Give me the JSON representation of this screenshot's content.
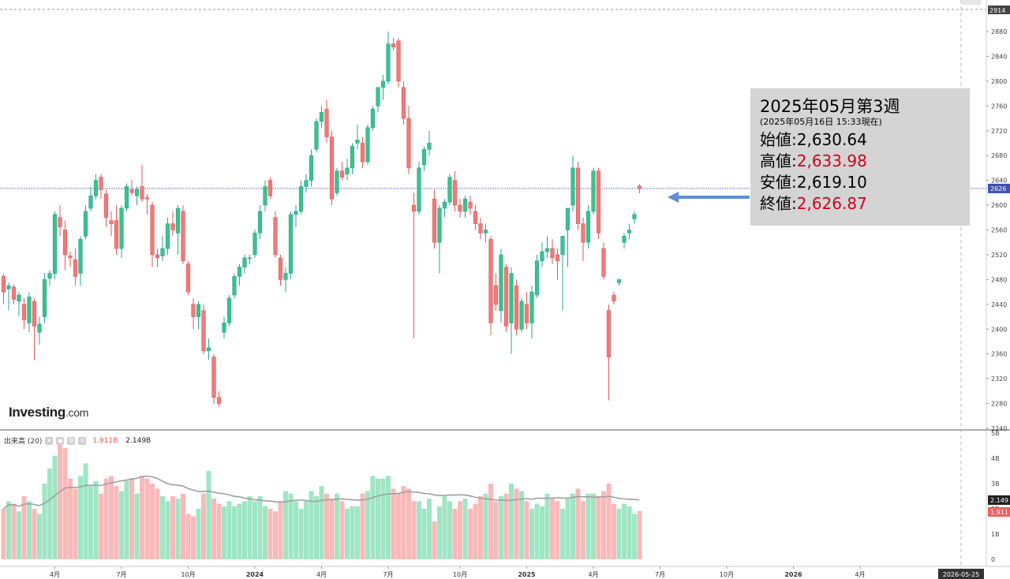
{
  "branding": {
    "logo_main": "Investing",
    "logo_suffix": ".com"
  },
  "volume_legend": {
    "label": "出来高 (20)",
    "value_current": "1.911B",
    "value_ma": "2.149B"
  },
  "info_box": {
    "title": "2025年05月第3週",
    "subtitle": "(2025年05月16日 15:33現在)",
    "open_label": "始値",
    "open_value": "2,630.64",
    "high_label": "高値",
    "high_value": "2,633.98",
    "low_label": "安値",
    "low_value": "2,619.10",
    "close_label": "終値",
    "close_value": "2,626.87"
  },
  "colors": {
    "up": "#26a69a",
    "up_fill": "#3cc18a",
    "down": "#e05a5a",
    "down_fill": "#f07a7a",
    "vol_up": "#9ee6c4",
    "vol_down": "#f9b9b9",
    "price_line": "#5d6fd9",
    "arrow": "#5b8fd6",
    "ma_line": "#a0a0a0"
  },
  "chart_data": {
    "type": "candlestick",
    "price_axis": {
      "ticks": [
        "2240",
        "2280",
        "2320",
        "2360",
        "2400",
        "2440",
        "2480",
        "2520",
        "2560",
        "2600",
        "2640",
        "2680",
        "2720",
        "2760",
        "2800",
        "2840",
        "2880"
      ],
      "top_label": "2914",
      "current_label": "2626",
      "ylim": [
        2240,
        2914
      ]
    },
    "volume_axis": {
      "ticks": [
        "0",
        "1B",
        "2B",
        "3B",
        "4B",
        "5B"
      ],
      "ma_label": "2.149",
      "current_label": "1.911",
      "ylim": [
        0,
        5
      ]
    },
    "time_axis": {
      "labels": [
        {
          "text": "4月",
          "week": 10
        },
        {
          "text": "7月",
          "week": 23
        },
        {
          "text": "10月",
          "week": 36
        },
        {
          "text": "2024",
          "week": 49
        },
        {
          "text": "4月",
          "week": 62
        },
        {
          "text": "7月",
          "week": 75
        },
        {
          "text": "10月",
          "week": 89
        },
        {
          "text": "2025",
          "week": 102
        },
        {
          "text": "4月",
          "week": 115
        },
        {
          "text": "7月",
          "week": 128
        },
        {
          "text": "10月",
          "week": 141
        },
        {
          "text": "2026",
          "week": 154
        },
        {
          "text": "4月",
          "week": 167
        }
      ],
      "end_label": "2026-05-25"
    },
    "current_price": 2626.87,
    "note": "weekly OHLC in index points, volume in billions (B)",
    "series": [
      {
        "o": 2485,
        "h": 2490,
        "l": 2440,
        "c": 2460,
        "v": 2.0
      },
      {
        "o": 2465,
        "h": 2475,
        "l": 2430,
        "c": 2470,
        "v": 2.3
      },
      {
        "o": 2468,
        "h": 2472,
        "l": 2440,
        "c": 2448,
        "v": 2.2
      },
      {
        "o": 2445,
        "h": 2460,
        "l": 2420,
        "c": 2455,
        "v": 1.9
      },
      {
        "o": 2440,
        "h": 2450,
        "l": 2400,
        "c": 2415,
        "v": 2.5
      },
      {
        "o": 2410,
        "h": 2460,
        "l": 2395,
        "c": 2452,
        "v": 2.3
      },
      {
        "o": 2445,
        "h": 2450,
        "l": 2350,
        "c": 2405,
        "v": 2.0
      },
      {
        "o": 2395,
        "h": 2420,
        "l": 2375,
        "c": 2408,
        "v": 1.8
      },
      {
        "o": 2420,
        "h": 2490,
        "l": 2410,
        "c": 2480,
        "v": 3.0
      },
      {
        "o": 2482,
        "h": 2495,
        "l": 2470,
        "c": 2490,
        "v": 3.6
      },
      {
        "o": 2490,
        "h": 2590,
        "l": 2480,
        "c": 2585,
        "v": 4.1
      },
      {
        "o": 2580,
        "h": 2600,
        "l": 2550,
        "c": 2565,
        "v": 4.6
      },
      {
        "o": 2560,
        "h": 2575,
        "l": 2495,
        "c": 2520,
        "v": 4.4
      },
      {
        "o": 2518,
        "h": 2525,
        "l": 2500,
        "c": 2515,
        "v": 3.2
      },
      {
        "o": 2512,
        "h": 2530,
        "l": 2470,
        "c": 2485,
        "v": 2.8
      },
      {
        "o": 2490,
        "h": 2550,
        "l": 2470,
        "c": 2545,
        "v": 3.3
      },
      {
        "o": 2550,
        "h": 2600,
        "l": 2545,
        "c": 2590,
        "v": 3.8
      },
      {
        "o": 2595,
        "h": 2630,
        "l": 2590,
        "c": 2615,
        "v": 2.9
      },
      {
        "o": 2615,
        "h": 2650,
        "l": 2610,
        "c": 2640,
        "v": 3.1
      },
      {
        "o": 2645,
        "h": 2650,
        "l": 2610,
        "c": 2625,
        "v": 2.6
      },
      {
        "o": 2618,
        "h": 2625,
        "l": 2565,
        "c": 2580,
        "v": 3.2
      },
      {
        "o": 2575,
        "h": 2590,
        "l": 2550,
        "c": 2570,
        "v": 3.3
      },
      {
        "o": 2575,
        "h": 2600,
        "l": 2520,
        "c": 2530,
        "v": 2.9
      },
      {
        "o": 2530,
        "h": 2600,
        "l": 2515,
        "c": 2595,
        "v": 2.7
      },
      {
        "o": 2595,
        "h": 2635,
        "l": 2590,
        "c": 2630,
        "v": 3.1
      },
      {
        "o": 2625,
        "h": 2640,
        "l": 2615,
        "c": 2620,
        "v": 3.2
      },
      {
        "o": 2615,
        "h": 2630,
        "l": 2600,
        "c": 2625,
        "v": 2.6
      },
      {
        "o": 2630,
        "h": 2665,
        "l": 2605,
        "c": 2610,
        "v": 3.3
      },
      {
        "o": 2612,
        "h": 2618,
        "l": 2585,
        "c": 2610,
        "v": 3.2
      },
      {
        "o": 2600,
        "h": 2605,
        "l": 2500,
        "c": 2520,
        "v": 3.0
      },
      {
        "o": 2520,
        "h": 2530,
        "l": 2500,
        "c": 2515,
        "v": 2.8
      },
      {
        "o": 2518,
        "h": 2550,
        "l": 2510,
        "c": 2530,
        "v": 2.5
      },
      {
        "o": 2530,
        "h": 2580,
        "l": 2520,
        "c": 2570,
        "v": 2.3
      },
      {
        "o": 2570,
        "h": 2590,
        "l": 2550,
        "c": 2560,
        "v": 2.5
      },
      {
        "o": 2555,
        "h": 2600,
        "l": 2520,
        "c": 2595,
        "v": 2.4
      },
      {
        "o": 2590,
        "h": 2600,
        "l": 2505,
        "c": 2510,
        "v": 2.6
      },
      {
        "o": 2505,
        "h": 2510,
        "l": 2455,
        "c": 2460,
        "v": 1.8
      },
      {
        "o": 2440,
        "h": 2450,
        "l": 2400,
        "c": 2420,
        "v": 1.7
      },
      {
        "o": 2420,
        "h": 2445,
        "l": 2400,
        "c": 2440,
        "v": 2.0
      },
      {
        "o": 2430,
        "h": 2440,
        "l": 2360,
        "c": 2365,
        "v": 2.6
      },
      {
        "o": 2365,
        "h": 2385,
        "l": 2350,
        "c": 2370,
        "v": 3.5
      },
      {
        "o": 2355,
        "h": 2360,
        "l": 2280,
        "c": 2290,
        "v": 2.4
      },
      {
        "o": 2290,
        "h": 2300,
        "l": 2275,
        "c": 2280,
        "v": 2.2
      },
      {
        "o": 2395,
        "h": 2420,
        "l": 2385,
        "c": 2410,
        "v": 2.1
      },
      {
        "o": 2410,
        "h": 2455,
        "l": 2405,
        "c": 2450,
        "v": 2.3
      },
      {
        "o": 2455,
        "h": 2490,
        "l": 2450,
        "c": 2485,
        "v": 2.1
      },
      {
        "o": 2485,
        "h": 2505,
        "l": 2470,
        "c": 2500,
        "v": 2.2
      },
      {
        "o": 2500,
        "h": 2520,
        "l": 2490,
        "c": 2515,
        "v": 2.3
      },
      {
        "o": 2515,
        "h": 2520,
        "l": 2505,
        "c": 2515,
        "v": 2.5
      },
      {
        "o": 2520,
        "h": 2560,
        "l": 2515,
        "c": 2555,
        "v": 2.3
      },
      {
        "o": 2555,
        "h": 2600,
        "l": 2545,
        "c": 2590,
        "v": 2.5
      },
      {
        "o": 2600,
        "h": 2640,
        "l": 2590,
        "c": 2630,
        "v": 2.1
      },
      {
        "o": 2640,
        "h": 2645,
        "l": 2610,
        "c": 2615,
        "v": 2.0
      },
      {
        "o": 2580,
        "h": 2590,
        "l": 2515,
        "c": 2520,
        "v": 1.9
      },
      {
        "o": 2515,
        "h": 2520,
        "l": 2470,
        "c": 2480,
        "v": 2.3
      },
      {
        "o": 2480,
        "h": 2500,
        "l": 2460,
        "c": 2490,
        "v": 2.7
      },
      {
        "o": 2490,
        "h": 2590,
        "l": 2480,
        "c": 2585,
        "v": 2.6
      },
      {
        "o": 2585,
        "h": 2600,
        "l": 2565,
        "c": 2590,
        "v": 2.3
      },
      {
        "o": 2590,
        "h": 2640,
        "l": 2585,
        "c": 2630,
        "v": 2.0
      },
      {
        "o": 2630,
        "h": 2650,
        "l": 2620,
        "c": 2640,
        "v": 2.3
      },
      {
        "o": 2640,
        "h": 2690,
        "l": 2630,
        "c": 2680,
        "v": 2.7
      },
      {
        "o": 2690,
        "h": 2740,
        "l": 2685,
        "c": 2735,
        "v": 2.5
      },
      {
        "o": 2735,
        "h": 2760,
        "l": 2725,
        "c": 2750,
        "v": 2.9
      },
      {
        "o": 2755,
        "h": 2770,
        "l": 2700,
        "c": 2710,
        "v": 2.6
      },
      {
        "o": 2710,
        "h": 2720,
        "l": 2600,
        "c": 2610,
        "v": 2.4
      },
      {
        "o": 2620,
        "h": 2660,
        "l": 2615,
        "c": 2655,
        "v": 2.6
      },
      {
        "o": 2655,
        "h": 2670,
        "l": 2640,
        "c": 2645,
        "v": 2.3
      },
      {
        "o": 2650,
        "h": 2675,
        "l": 2640,
        "c": 2660,
        "v": 2.0
      },
      {
        "o": 2660,
        "h": 2700,
        "l": 2650,
        "c": 2695,
        "v": 2.1
      },
      {
        "o": 2700,
        "h": 2730,
        "l": 2690,
        "c": 2705,
        "v": 2.1
      },
      {
        "o": 2700,
        "h": 2710,
        "l": 2660,
        "c": 2670,
        "v": 2.6
      },
      {
        "o": 2670,
        "h": 2730,
        "l": 2665,
        "c": 2725,
        "v": 2.7
      },
      {
        "o": 2725,
        "h": 2760,
        "l": 2720,
        "c": 2755,
        "v": 3.3
      },
      {
        "o": 2760,
        "h": 2790,
        "l": 2750,
        "c": 2790,
        "v": 3.2
      },
      {
        "o": 2790,
        "h": 2810,
        "l": 2770,
        "c": 2800,
        "v": 3.2
      },
      {
        "o": 2800,
        "h": 2880,
        "l": 2795,
        "c": 2860,
        "v": 3.3
      },
      {
        "o": 2860,
        "h": 2870,
        "l": 2850,
        "c": 2855,
        "v": 2.8
      },
      {
        "o": 2865,
        "h": 2870,
        "l": 2790,
        "c": 2800,
        "v": 2.6
      },
      {
        "o": 2790,
        "h": 2800,
        "l": 2730,
        "c": 2740,
        "v": 2.9
      },
      {
        "o": 2740,
        "h": 2760,
        "l": 2650,
        "c": 2660,
        "v": 2.8
      },
      {
        "o": 2600,
        "h": 2620,
        "l": 2385,
        "c": 2590,
        "v": 2.3
      },
      {
        "o": 2590,
        "h": 2670,
        "l": 2585,
        "c": 2660,
        "v": 2.3
      },
      {
        "o": 2665,
        "h": 2695,
        "l": 2655,
        "c": 2690,
        "v": 2.0
      },
      {
        "o": 2690,
        "h": 2720,
        "l": 2680,
        "c": 2700,
        "v": 2.4
      },
      {
        "o": 2610,
        "h": 2625,
        "l": 2530,
        "c": 2540,
        "v": 1.5
      },
      {
        "o": 2540,
        "h": 2600,
        "l": 2490,
        "c": 2595,
        "v": 2.1
      },
      {
        "o": 2595,
        "h": 2610,
        "l": 2580,
        "c": 2605,
        "v": 2.5
      },
      {
        "o": 2605,
        "h": 2650,
        "l": 2600,
        "c": 2645,
        "v": 2.3
      },
      {
        "o": 2640,
        "h": 2655,
        "l": 2590,
        "c": 2600,
        "v": 2.0
      },
      {
        "o": 2600,
        "h": 2610,
        "l": 2580,
        "c": 2590,
        "v": 2.3
      },
      {
        "o": 2590,
        "h": 2615,
        "l": 2580,
        "c": 2610,
        "v": 2.4
      },
      {
        "o": 2605,
        "h": 2615,
        "l": 2585,
        "c": 2595,
        "v": 2.0
      },
      {
        "o": 2590,
        "h": 2600,
        "l": 2560,
        "c": 2570,
        "v": 2.2
      },
      {
        "o": 2570,
        "h": 2580,
        "l": 2545,
        "c": 2555,
        "v": 2.5
      },
      {
        "o": 2555,
        "h": 2570,
        "l": 2540,
        "c": 2560,
        "v": 2.6
      },
      {
        "o": 2545,
        "h": 2550,
        "l": 2390,
        "c": 2410,
        "v": 3.0
      },
      {
        "o": 2470,
        "h": 2490,
        "l": 2430,
        "c": 2440,
        "v": 2.3
      },
      {
        "o": 2430,
        "h": 2530,
        "l": 2410,
        "c": 2520,
        "v": 2.5
      },
      {
        "o": 2500,
        "h": 2505,
        "l": 2395,
        "c": 2405,
        "v": 2.6
      },
      {
        "o": 2410,
        "h": 2500,
        "l": 2360,
        "c": 2490,
        "v": 3.0
      },
      {
        "o": 2470,
        "h": 2480,
        "l": 2390,
        "c": 2400,
        "v": 2.8
      },
      {
        "o": 2400,
        "h": 2450,
        "l": 2395,
        "c": 2445,
        "v": 2.7
      },
      {
        "o": 2440,
        "h": 2460,
        "l": 2400,
        "c": 2410,
        "v": 2.3
      },
      {
        "o": 2410,
        "h": 2470,
        "l": 2385,
        "c": 2460,
        "v": 2.0
      },
      {
        "o": 2455,
        "h": 2520,
        "l": 2450,
        "c": 2510,
        "v": 2.2
      },
      {
        "o": 2510,
        "h": 2540,
        "l": 2500,
        "c": 2525,
        "v": 2.1
      },
      {
        "o": 2525,
        "h": 2550,
        "l": 2515,
        "c": 2530,
        "v": 2.6
      },
      {
        "o": 2530,
        "h": 2545,
        "l": 2505,
        "c": 2515,
        "v": 2.4
      },
      {
        "o": 2520,
        "h": 2530,
        "l": 2480,
        "c": 2510,
        "v": 2.3
      },
      {
        "o": 2520,
        "h": 2540,
        "l": 2430,
        "c": 2550,
        "v": 2.0
      },
      {
        "o": 2560,
        "h": 2580,
        "l": 2500,
        "c": 2595,
        "v": 2.4
      },
      {
        "o": 2600,
        "h": 2680,
        "l": 2590,
        "c": 2660,
        "v": 2.6
      },
      {
        "o": 2660,
        "h": 2670,
        "l": 2560,
        "c": 2570,
        "v": 2.8
      },
      {
        "o": 2570,
        "h": 2580,
        "l": 2510,
        "c": 2540,
        "v": 2.3
      },
      {
        "o": 2540,
        "h": 2600,
        "l": 2530,
        "c": 2590,
        "v": 2.6
      },
      {
        "o": 2590,
        "h": 2660,
        "l": 2585,
        "c": 2655,
        "v": 2.6
      },
      {
        "o": 2655,
        "h": 2660,
        "l": 2545,
        "c": 2555,
        "v": 2.5
      },
      {
        "o": 2530,
        "h": 2540,
        "l": 2480,
        "c": 2485,
        "v": 2.7
      },
      {
        "o": 2430,
        "h": 2440,
        "l": 2285,
        "c": 2355,
        "v": 3.0
      },
      {
        "o": 2455,
        "h": 2460,
        "l": 2440,
        "c": 2445,
        "v": 2.2
      },
      {
        "o": 2475,
        "h": 2480,
        "l": 2470,
        "c": 2480,
        "v": 2.0
      },
      {
        "o": 2540,
        "h": 2555,
        "l": 2530,
        "c": 2550,
        "v": 2.2
      },
      {
        "o": 2555,
        "h": 2570,
        "l": 2545,
        "c": 2560,
        "v": 2.1
      },
      {
        "o": 2578,
        "h": 2590,
        "l": 2570,
        "c": 2585,
        "v": 1.8
      },
      {
        "o": 2630.64,
        "h": 2633.98,
        "l": 2619.1,
        "c": 2626.87,
        "v": 1.911
      }
    ]
  }
}
